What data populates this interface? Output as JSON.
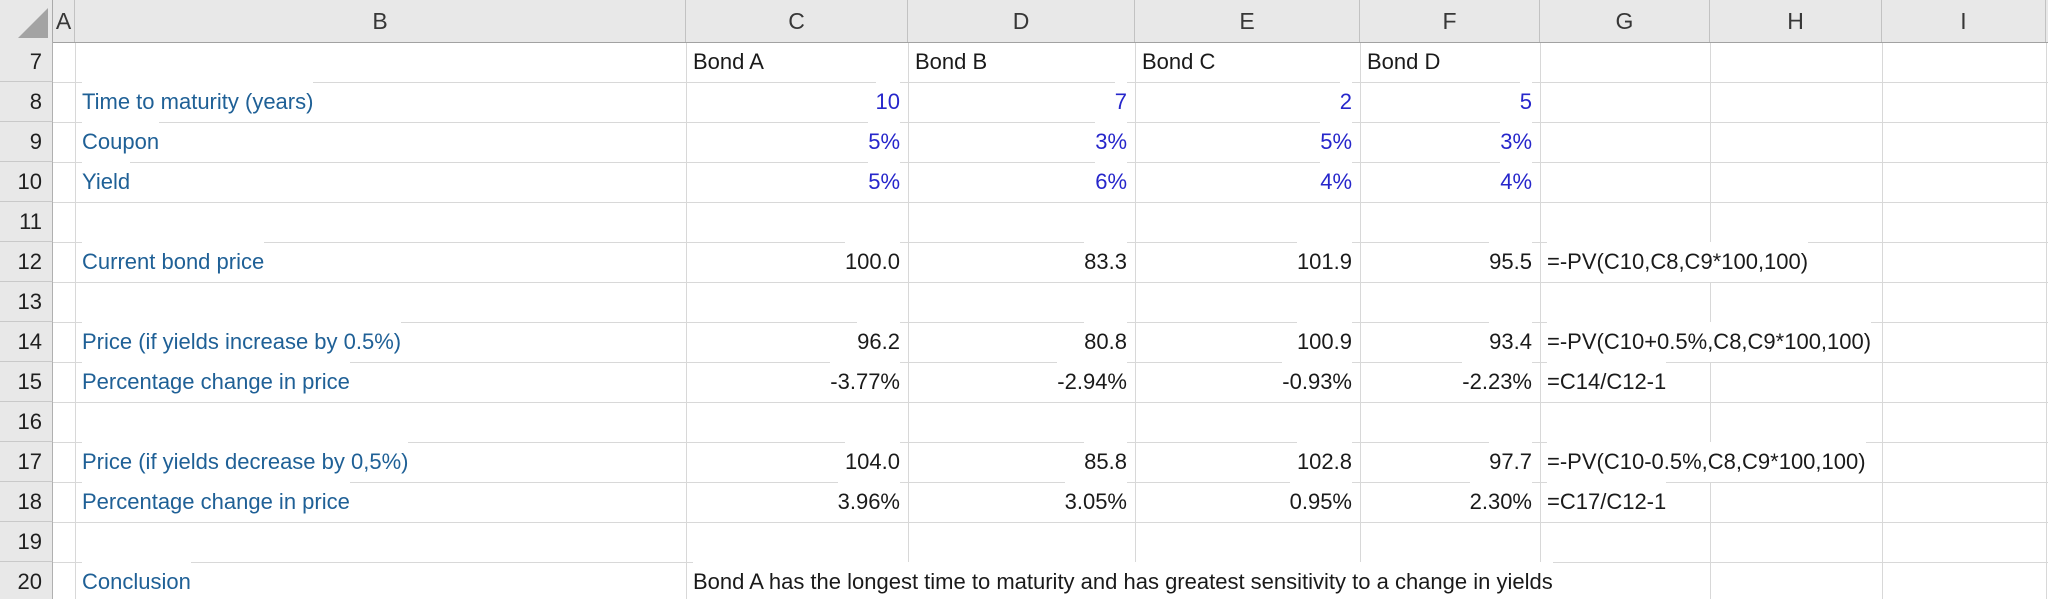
{
  "colors": {
    "label_blue": "#1f6096",
    "input_blue": "#2626cb",
    "value_black": "#1a1a1a",
    "header_bg": "#e8e8e8",
    "gridline": "#d8d8d8"
  },
  "sheet": {
    "column_headers": [
      "A",
      "B",
      "C",
      "D",
      "E",
      "F",
      "G",
      "H",
      "I"
    ],
    "rows": [
      {
        "num": "7",
        "cells": [
          {
            "col": "C",
            "text": "Bond A",
            "style": "text"
          },
          {
            "col": "D",
            "text": "Bond B",
            "style": "text"
          },
          {
            "col": "E",
            "text": "Bond C",
            "style": "text"
          },
          {
            "col": "F",
            "text": "Bond D",
            "style": "text"
          }
        ]
      },
      {
        "num": "8",
        "cells": [
          {
            "col": "B",
            "text": "Time to maturity (years)",
            "style": "label"
          },
          {
            "col": "C",
            "text": "10",
            "style": "input"
          },
          {
            "col": "D",
            "text": "7",
            "style": "input"
          },
          {
            "col": "E",
            "text": "2",
            "style": "input"
          },
          {
            "col": "F",
            "text": "5",
            "style": "input"
          }
        ]
      },
      {
        "num": "9",
        "cells": [
          {
            "col": "B",
            "text": "Coupon",
            "style": "label"
          },
          {
            "col": "C",
            "text": "5%",
            "style": "input"
          },
          {
            "col": "D",
            "text": "3%",
            "style": "input"
          },
          {
            "col": "E",
            "text": "5%",
            "style": "input"
          },
          {
            "col": "F",
            "text": "3%",
            "style": "input"
          }
        ]
      },
      {
        "num": "10",
        "cells": [
          {
            "col": "B",
            "text": "Yield",
            "style": "label"
          },
          {
            "col": "C",
            "text": "5%",
            "style": "input"
          },
          {
            "col": "D",
            "text": "6%",
            "style": "input"
          },
          {
            "col": "E",
            "text": "4%",
            "style": "input"
          },
          {
            "col": "F",
            "text": "4%",
            "style": "input"
          }
        ]
      },
      {
        "num": "11",
        "cells": []
      },
      {
        "num": "12",
        "cells": [
          {
            "col": "B",
            "text": "Current bond price",
            "style": "label"
          },
          {
            "col": "C",
            "text": "100.0",
            "style": "num"
          },
          {
            "col": "D",
            "text": "83.3",
            "style": "num"
          },
          {
            "col": "E",
            "text": "101.9",
            "style": "num"
          },
          {
            "col": "F",
            "text": "95.5",
            "style": "num"
          },
          {
            "col": "G",
            "text": "=-PV(C10,C8,C9*100,100)",
            "style": "formula"
          }
        ]
      },
      {
        "num": "13",
        "cells": []
      },
      {
        "num": "14",
        "cells": [
          {
            "col": "B",
            "text": "Price (if yields increase by 0.5%)",
            "style": "label"
          },
          {
            "col": "C",
            "text": "96.2",
            "style": "num"
          },
          {
            "col": "D",
            "text": "80.8",
            "style": "num"
          },
          {
            "col": "E",
            "text": "100.9",
            "style": "num"
          },
          {
            "col": "F",
            "text": "93.4",
            "style": "num"
          },
          {
            "col": "G",
            "text": "=-PV(C10+0.5%,C8,C9*100,100)",
            "style": "formula"
          }
        ]
      },
      {
        "num": "15",
        "cells": [
          {
            "col": "B",
            "text": "Percentage change in price",
            "style": "label"
          },
          {
            "col": "C",
            "text": "-3.77%",
            "style": "num"
          },
          {
            "col": "D",
            "text": "-2.94%",
            "style": "num"
          },
          {
            "col": "E",
            "text": "-0.93%",
            "style": "num"
          },
          {
            "col": "F",
            "text": "-2.23%",
            "style": "num"
          },
          {
            "col": "G",
            "text": "=C14/C12-1",
            "style": "formula"
          }
        ]
      },
      {
        "num": "16",
        "cells": []
      },
      {
        "num": "17",
        "cells": [
          {
            "col": "B",
            "text": "Price (if yields decrease by 0,5%)",
            "style": "label"
          },
          {
            "col": "C",
            "text": "104.0",
            "style": "num"
          },
          {
            "col": "D",
            "text": "85.8",
            "style": "num"
          },
          {
            "col": "E",
            "text": "102.8",
            "style": "num"
          },
          {
            "col": "F",
            "text": "97.7",
            "style": "num"
          },
          {
            "col": "G",
            "text": "=-PV(C10-0.5%,C8,C9*100,100)",
            "style": "formula"
          }
        ]
      },
      {
        "num": "18",
        "cells": [
          {
            "col": "B",
            "text": "Percentage change in price",
            "style": "label"
          },
          {
            "col": "C",
            "text": "3.96%",
            "style": "num"
          },
          {
            "col": "D",
            "text": "3.05%",
            "style": "num"
          },
          {
            "col": "E",
            "text": "0.95%",
            "style": "num"
          },
          {
            "col": "F",
            "text": "2.30%",
            "style": "num"
          },
          {
            "col": "G",
            "text": "=C17/C12-1",
            "style": "formula"
          }
        ]
      },
      {
        "num": "19",
        "cells": []
      },
      {
        "num": "20",
        "cells": [
          {
            "col": "B",
            "text": "Conclusion",
            "style": "label"
          },
          {
            "col": "C",
            "text": "Bond A has the longest time to maturity and has greatest sensitivity to a change in yields",
            "style": "text"
          }
        ]
      }
    ]
  }
}
